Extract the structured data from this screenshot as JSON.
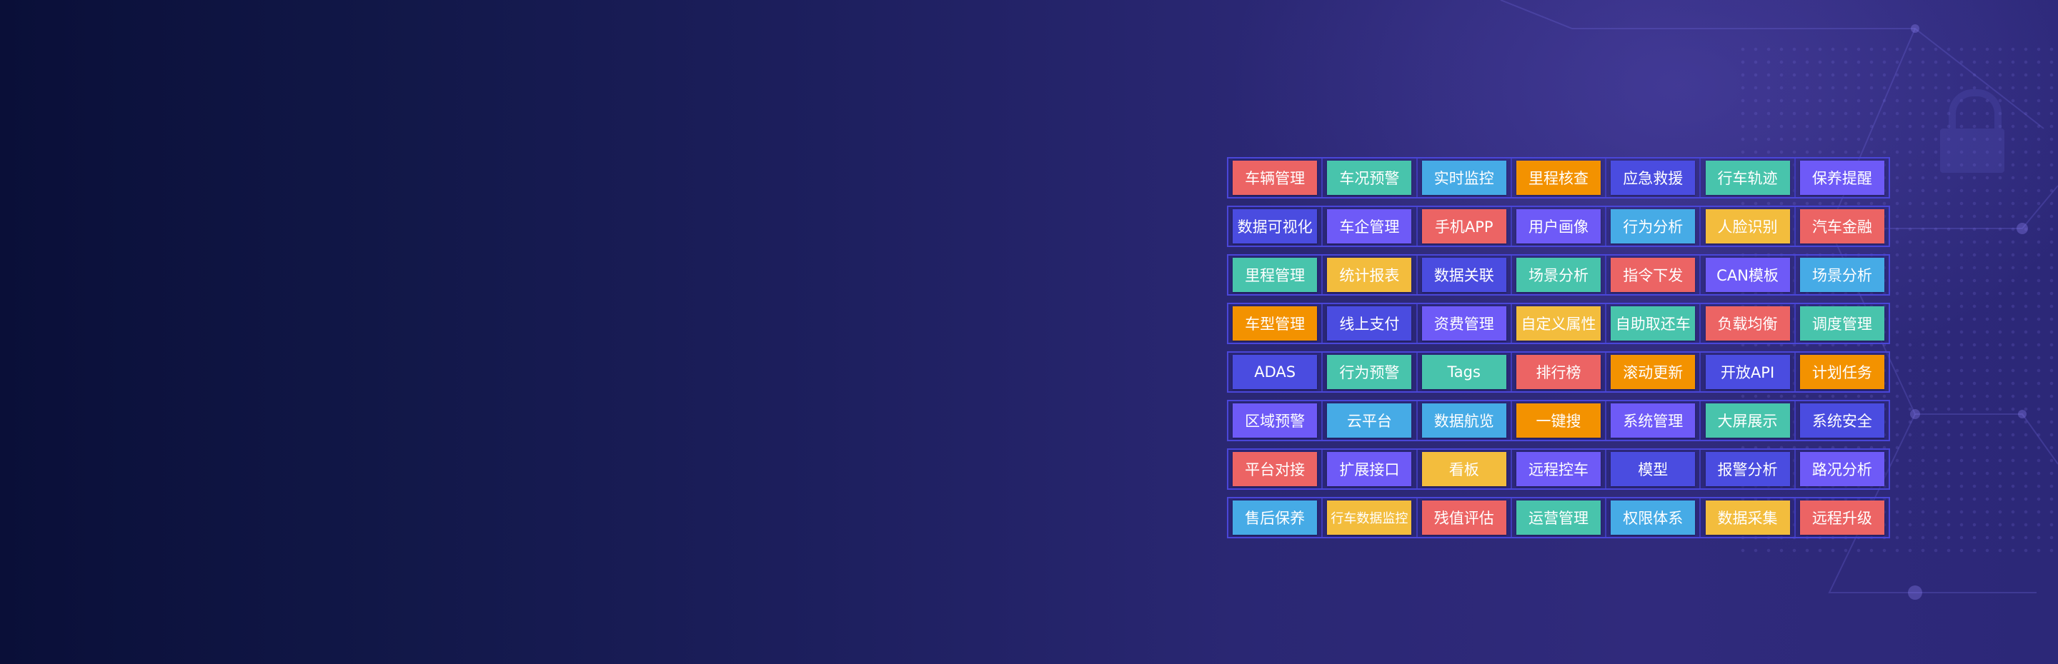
{
  "colors": {
    "red": "#ec6464",
    "teal": "#48c4ac",
    "sky": "#46abe6",
    "orange": "#f39200",
    "indigo": "#4a4ce0",
    "purple": "#6e5af7",
    "yellow": "#f3bd3d"
  },
  "rows": [
    [
      {
        "label": "车辆管理",
        "color": "red"
      },
      {
        "label": "车况预警",
        "color": "teal"
      },
      {
        "label": "实时监控",
        "color": "sky"
      },
      {
        "label": "里程核查",
        "color": "orange"
      },
      {
        "label": "应急救援",
        "color": "indigo"
      },
      {
        "label": "行车轨迹",
        "color": "teal"
      },
      {
        "label": "保养提醒",
        "color": "purple"
      }
    ],
    [
      {
        "label": "数据可视化",
        "color": "indigo"
      },
      {
        "label": "车企管理",
        "color": "purple"
      },
      {
        "label": "手机APP",
        "color": "red"
      },
      {
        "label": "用户画像",
        "color": "purple"
      },
      {
        "label": "行为分析",
        "color": "sky"
      },
      {
        "label": "人脸识别",
        "color": "yellow"
      },
      {
        "label": "汽车金融",
        "color": "red"
      }
    ],
    [
      {
        "label": "里程管理",
        "color": "teal"
      },
      {
        "label": "统计报表",
        "color": "yellow"
      },
      {
        "label": "数据关联",
        "color": "indigo"
      },
      {
        "label": "场景分析",
        "color": "teal"
      },
      {
        "label": "指令下发",
        "color": "red"
      },
      {
        "label": "CAN模板",
        "color": "purple"
      },
      {
        "label": "场景分析",
        "color": "sky"
      }
    ],
    [
      {
        "label": "车型管理",
        "color": "orange"
      },
      {
        "label": "线上支付",
        "color": "indigo"
      },
      {
        "label": "资费管理",
        "color": "purple"
      },
      {
        "label": "自定义属性",
        "color": "yellow"
      },
      {
        "label": "自助取还车",
        "color": "teal"
      },
      {
        "label": "负载均衡",
        "color": "red"
      },
      {
        "label": "调度管理",
        "color": "teal"
      }
    ],
    [
      {
        "label": "ADAS",
        "color": "indigo"
      },
      {
        "label": "行为预警",
        "color": "teal"
      },
      {
        "label": "Tags",
        "color": "teal"
      },
      {
        "label": "排行榜",
        "color": "red"
      },
      {
        "label": "滚动更新",
        "color": "orange"
      },
      {
        "label": "开放API",
        "color": "indigo"
      },
      {
        "label": "计划任务",
        "color": "orange"
      }
    ],
    [
      {
        "label": "区域预警",
        "color": "purple"
      },
      {
        "label": "云平台",
        "color": "sky"
      },
      {
        "label": "数据航览",
        "color": "sky"
      },
      {
        "label": "一键搜",
        "color": "orange"
      },
      {
        "label": "系统管理",
        "color": "purple"
      },
      {
        "label": "大屏展示",
        "color": "teal"
      },
      {
        "label": "系统安全",
        "color": "indigo"
      }
    ],
    [
      {
        "label": "平台对接",
        "color": "red"
      },
      {
        "label": "扩展接口",
        "color": "purple"
      },
      {
        "label": "看板",
        "color": "yellow"
      },
      {
        "label": "远程控车",
        "color": "purple"
      },
      {
        "label": "模型",
        "color": "indigo"
      },
      {
        "label": "报警分析",
        "color": "indigo"
      },
      {
        "label": "路况分析",
        "color": "purple"
      }
    ],
    [
      {
        "label": "售后保养",
        "color": "sky"
      },
      {
        "label": "行车数据监控",
        "color": "yellow"
      },
      {
        "label": "残值评估",
        "color": "red"
      },
      {
        "label": "运营管理",
        "color": "teal"
      },
      {
        "label": "权限体系",
        "color": "sky"
      },
      {
        "label": "数据采集",
        "color": "yellow"
      },
      {
        "label": "远程升级",
        "color": "red"
      }
    ]
  ]
}
